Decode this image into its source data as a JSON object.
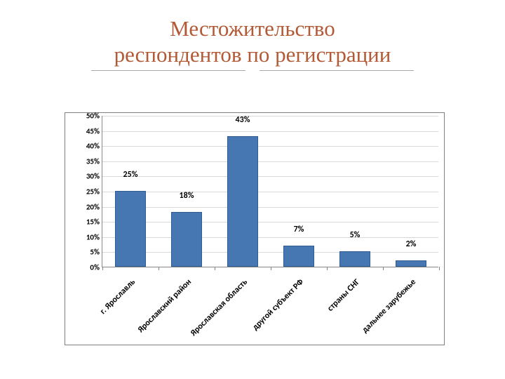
{
  "slide": {
    "title": "Местожительство\nреспондентов по регистрации",
    "divider_glyph": "",
    "title_color": "#b25a36",
    "background_color": "#ffffff"
  },
  "chart": {
    "type": "bar",
    "categories": [
      "г. Ярославль",
      "Ярославский район",
      "Ярославская область",
      "другой субъект РФ",
      "страны СНГ",
      "дальнее зарубежье"
    ],
    "values": [
      25,
      18,
      43,
      7,
      5,
      2
    ],
    "value_labels": [
      "25%",
      "18%",
      "43%",
      "7%",
      "5%",
      "2%"
    ],
    "bar_color": "#4677b3",
    "bar_border_color": "#305c8f",
    "y_max": 50,
    "y_tick_step": 5,
    "y_tick_labels": [
      "0%",
      "5%",
      "10%",
      "15%",
      "20%",
      "25%",
      "30%",
      "35%",
      "40%",
      "45%",
      "50%"
    ],
    "grid_color": "#d9d9d9",
    "axis_color": "#888888",
    "label_font_size": 12,
    "tick_font_size": 11,
    "bar_width_ratio": 0.55,
    "plot_background": "#ffffff",
    "chart_border_color": "#7f7f7f"
  }
}
